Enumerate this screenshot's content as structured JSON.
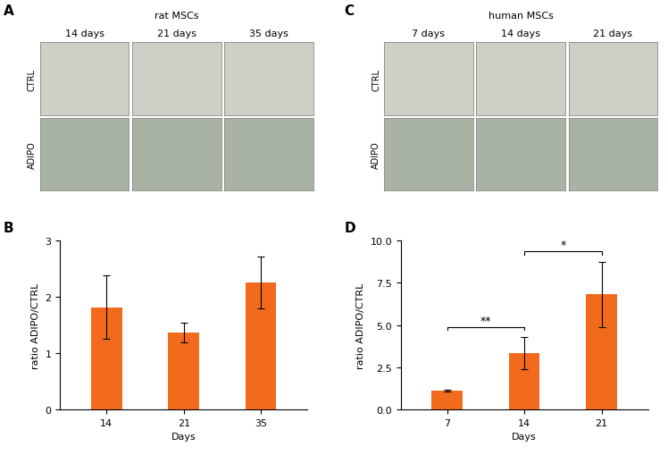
{
  "panel_letters": [
    "A",
    "B",
    "C",
    "D"
  ],
  "image_panels": [
    {
      "title": "rat MSCs",
      "columns": [
        "14 days",
        "21 days",
        "35 days"
      ],
      "rows": [
        "CTRL",
        "ADIPO"
      ]
    },
    {
      "title": "human MSCs",
      "columns": [
        "7 days",
        "14 days",
        "21 days"
      ],
      "rows": [
        "CTRL",
        "ADIPO"
      ]
    }
  ],
  "chart_data": [
    {
      "type": "bar",
      "categories": [
        "14",
        "21",
        "35"
      ],
      "values": [
        1.82,
        1.37,
        2.26
      ],
      "errors": [
        0.56,
        0.17,
        0.46
      ],
      "color": "#f26b1d",
      "xlabel": "Days",
      "ylabel": "ratio ADIPO/CTRL",
      "ylim": [
        0,
        3
      ],
      "yticks": [
        0,
        1,
        2,
        3
      ],
      "grid": false
    },
    {
      "type": "bar",
      "categories": [
        "7",
        "14",
        "21"
      ],
      "values": [
        1.12,
        3.35,
        6.82
      ],
      "errors": [
        0.05,
        0.95,
        1.95
      ],
      "color": "#f26b1d",
      "xlabel": "Days",
      "ylabel": "ratio ADIPO/CTRL",
      "ylim": [
        0,
        10
      ],
      "yticks": [
        {
          "value": 0,
          "label": "0.0"
        },
        2.5,
        {
          "value": 5,
          "label": "5.0"
        },
        7.5,
        {
          "value": 10,
          "label": "10.0"
        }
      ],
      "grid": false,
      "annotations": [
        {
          "between": [
            "7",
            "14"
          ],
          "text": "**"
        },
        {
          "between": [
            "14",
            "21"
          ],
          "text": "*"
        }
      ]
    }
  ]
}
